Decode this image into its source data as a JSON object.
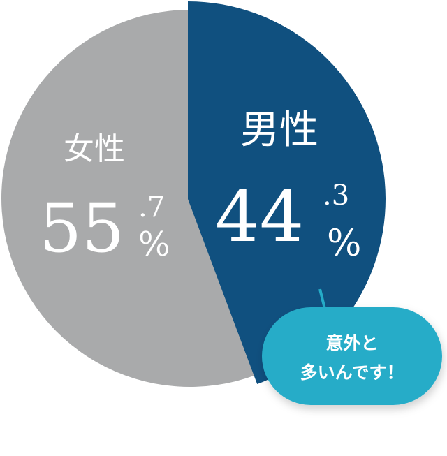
{
  "chart_data": {
    "type": "pie",
    "slices": [
      {
        "label": "男性",
        "value": 44.3,
        "int": "44",
        "dec": ".3",
        "color": "#10507f",
        "exploded": true
      },
      {
        "label": "女性",
        "value": 55.7,
        "int": "55",
        "dec": ".7",
        "color": "#a9aaab",
        "exploded": false
      }
    ],
    "unit": "%",
    "annotation": {
      "lines": [
        "意外と",
        "多いんです！"
      ],
      "color": "#25acc8"
    }
  }
}
